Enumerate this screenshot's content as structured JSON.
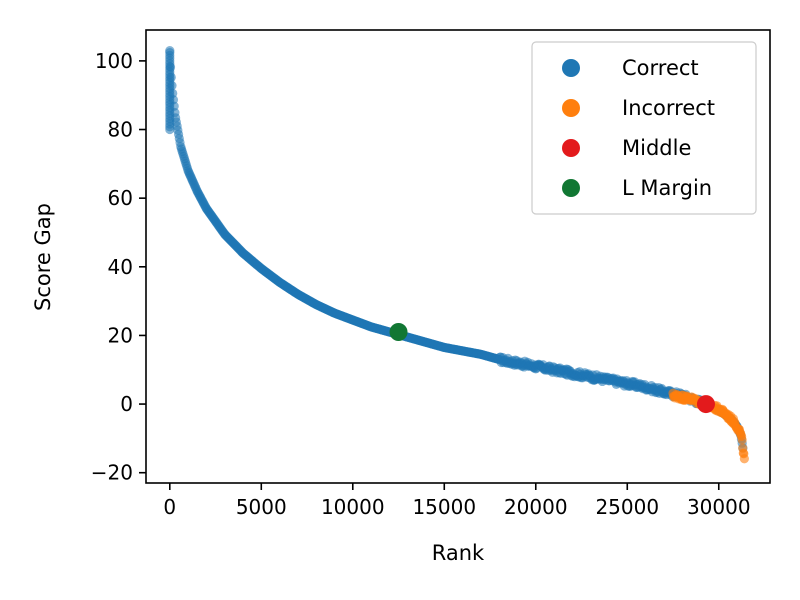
{
  "chart_data": {
    "type": "scatter",
    "title": "",
    "xlabel": "Rank",
    "ylabel": "Score Gap",
    "xlim": [
      -1300,
      32800
    ],
    "ylim": [
      -23,
      109
    ],
    "xticks": [
      0,
      5000,
      10000,
      15000,
      20000,
      25000,
      30000
    ],
    "xtick_labels": [
      "0",
      "5000",
      "10000",
      "15000",
      "20000",
      "25000",
      "30000"
    ],
    "yticks": [
      -20,
      0,
      20,
      40,
      60,
      80,
      100
    ],
    "ytick_labels": [
      "−20",
      "0",
      "20",
      "40",
      "60",
      "80",
      "100"
    ],
    "grid": false,
    "legend_position": "top-right",
    "series": [
      {
        "name": "Correct",
        "color": "#1f77b4",
        "curve_points": [
          [
            0,
            103
          ],
          [
            50,
            97
          ],
          [
            150,
            91
          ],
          [
            300,
            84
          ],
          [
            600,
            75
          ],
          [
            1000,
            68
          ],
          [
            1500,
            62
          ],
          [
            2000,
            57
          ],
          [
            3000,
            49.5
          ],
          [
            4000,
            44
          ],
          [
            5000,
            39.5
          ],
          [
            6000,
            35.5
          ],
          [
            7000,
            32
          ],
          [
            8000,
            29
          ],
          [
            9000,
            26.5
          ],
          [
            10000,
            24.5
          ],
          [
            11000,
            22.5
          ],
          [
            12000,
            21
          ],
          [
            13000,
            19.5
          ],
          [
            14000,
            18
          ],
          [
            15000,
            16.5
          ],
          [
            16000,
            15.5
          ],
          [
            17000,
            14.5
          ],
          [
            18000,
            13
          ],
          [
            19000,
            12
          ],
          [
            20000,
            11
          ],
          [
            21000,
            10
          ],
          [
            22000,
            9
          ],
          [
            23000,
            8
          ],
          [
            24000,
            7
          ],
          [
            25000,
            6
          ],
          [
            26000,
            5
          ],
          [
            27000,
            3.5
          ],
          [
            28000,
            2.5
          ],
          [
            29000,
            0.5
          ],
          [
            29700,
            -1
          ],
          [
            30200,
            -2.5
          ],
          [
            30700,
            -4.5
          ],
          [
            31000,
            -6.5
          ],
          [
            31200,
            -9
          ],
          [
            31300,
            -12
          ],
          [
            31350,
            -14
          ]
        ]
      },
      {
        "name": "Incorrect",
        "color": "#ff7f0e",
        "curve_points": [
          [
            27500,
            2.5
          ],
          [
            28500,
            1.5
          ],
          [
            29000,
            0.5
          ],
          [
            29500,
            -0.5
          ],
          [
            30000,
            -1.5
          ],
          [
            30400,
            -3
          ],
          [
            30800,
            -5
          ],
          [
            31000,
            -6.5
          ],
          [
            31150,
            -8
          ],
          [
            31250,
            -10
          ],
          [
            31300,
            -12
          ],
          [
            31350,
            -14
          ],
          [
            31400,
            -16.5
          ]
        ]
      },
      {
        "name": "Middle",
        "color": "#e31a1c",
        "points": [
          [
            29300,
            0
          ]
        ]
      },
      {
        "name": "L Margin",
        "color": "#117733",
        "points": [
          [
            12500,
            21
          ]
        ]
      }
    ]
  }
}
